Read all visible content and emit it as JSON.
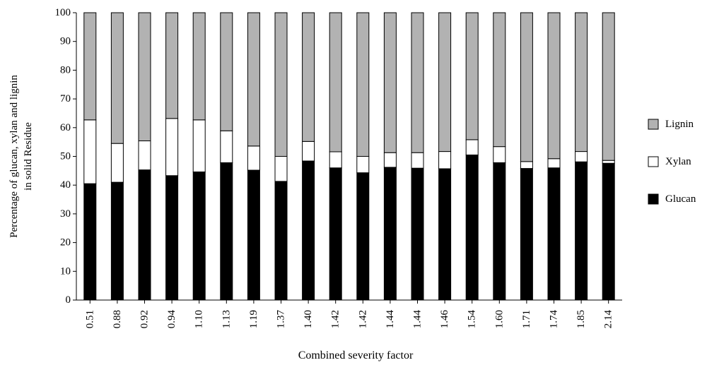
{
  "chart_data": {
    "type": "bar",
    "stacked": true,
    "title": "",
    "xlabel": "Combined severity factor",
    "ylabel": "Percentage of glucan, xylan and lignin in solid Residue",
    "ylabel_lines": [
      "Percentage of glucan, xylan and lignin",
      "in solid Residue"
    ],
    "ylim": [
      0,
      100
    ],
    "yticks": [
      0,
      10,
      20,
      30,
      40,
      50,
      60,
      70,
      80,
      90,
      100
    ],
    "categories": [
      "0.51",
      "0.88",
      "0.92",
      "0.94",
      "1.10",
      "1.13",
      "1.19",
      "1.37",
      "1.40",
      "1.42",
      "1.42",
      "1.44",
      "1.44",
      "1.46",
      "1.54",
      "1.60",
      "1.71",
      "1.74",
      "1.85",
      "2.14"
    ],
    "series": [
      {
        "name": "Glucan",
        "color": "#000000",
        "values": [
          40.5,
          41.0,
          45.3,
          43.3,
          44.6,
          47.8,
          45.2,
          41.3,
          48.4,
          46.0,
          44.3,
          46.2,
          45.9,
          45.7,
          50.5,
          47.8,
          45.8,
          46.0,
          48.1,
          47.6
        ]
      },
      {
        "name": "Xylan",
        "color": "#ffffff",
        "values": [
          22.2,
          13.5,
          10.1,
          19.9,
          18.1,
          11.1,
          8.4,
          8.7,
          6.8,
          5.6,
          5.7,
          5.1,
          5.4,
          6.0,
          5.3,
          5.6,
          2.4,
          3.2,
          3.6,
          1.0
        ]
      },
      {
        "name": "Lignin",
        "color": "#b2b2b2",
        "values": [
          37.3,
          45.5,
          44.6,
          36.8,
          37.3,
          41.1,
          46.4,
          50.0,
          44.8,
          48.4,
          50.0,
          48.7,
          48.7,
          48.3,
          44.2,
          46.6,
          51.8,
          50.8,
          48.3,
          51.4
        ]
      }
    ],
    "legend": {
      "placement": "right",
      "order": [
        "Lignin",
        "Xylan",
        "Glucan"
      ]
    },
    "grid": false
  }
}
